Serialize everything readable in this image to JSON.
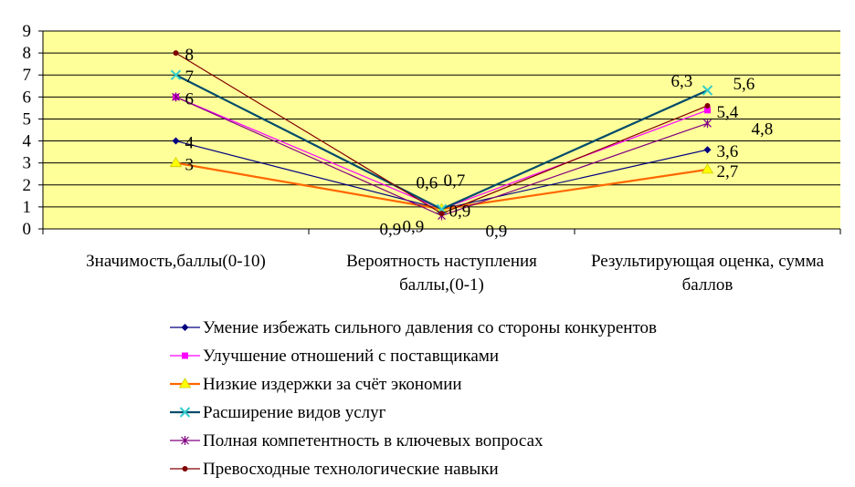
{
  "chart_data": {
    "type": "line",
    "categories": [
      [
        "Значимость,баллы(0-10)"
      ],
      [
        "Вероятность наступления",
        "баллы,(0-1)"
      ],
      [
        "Результирующая оценка, сумма",
        "баллов"
      ]
    ],
    "ylim": [
      0,
      9
    ],
    "yticks": [
      0,
      1,
      2,
      3,
      4,
      5,
      6,
      7,
      8,
      9
    ],
    "grid": true,
    "plot_background": "#FFFF99",
    "legend_position": "bottom",
    "series": [
      {
        "name": "Умение избежать сильного давления со стороны конкурентов",
        "color": "#000080",
        "marker": "diamond",
        "values": [
          4,
          0.9,
          3.6
        ],
        "labels": [
          "4",
          "0,9",
          "3,6"
        ]
      },
      {
        "name": "Улучшение отношений с поставщиками",
        "color": "#FF00FF",
        "marker": "square",
        "values": [
          6,
          0.9,
          5.4
        ],
        "labels": [
          "6",
          "0,9",
          "5,4"
        ]
      },
      {
        "name": "Низкие издержки за счёт экономии",
        "color": "#FF6600",
        "marker": "triangle",
        "values": [
          3,
          0.9,
          2.7
        ],
        "labels": [
          "3",
          "0,9",
          "2,7"
        ]
      },
      {
        "name": "Расширение видов услуг",
        "color": "#004B6B",
        "marker": "x",
        "values": [
          7,
          0.9,
          6.3
        ],
        "labels": [
          "7",
          "0,9",
          "6,3"
        ]
      },
      {
        "name": "Полная компетентность в ключевых вопросах",
        "color": "#800080",
        "marker": "star",
        "values": [
          6,
          0.6,
          4.8
        ],
        "labels": [
          "",
          "0,6",
          "4,8"
        ]
      },
      {
        "name": "Превосходные технологические навыки",
        "color": "#800000",
        "marker": "circle",
        "values": [
          8,
          0.7,
          5.6
        ],
        "labels": [
          "8",
          "0,7",
          "5,6"
        ]
      }
    ]
  }
}
